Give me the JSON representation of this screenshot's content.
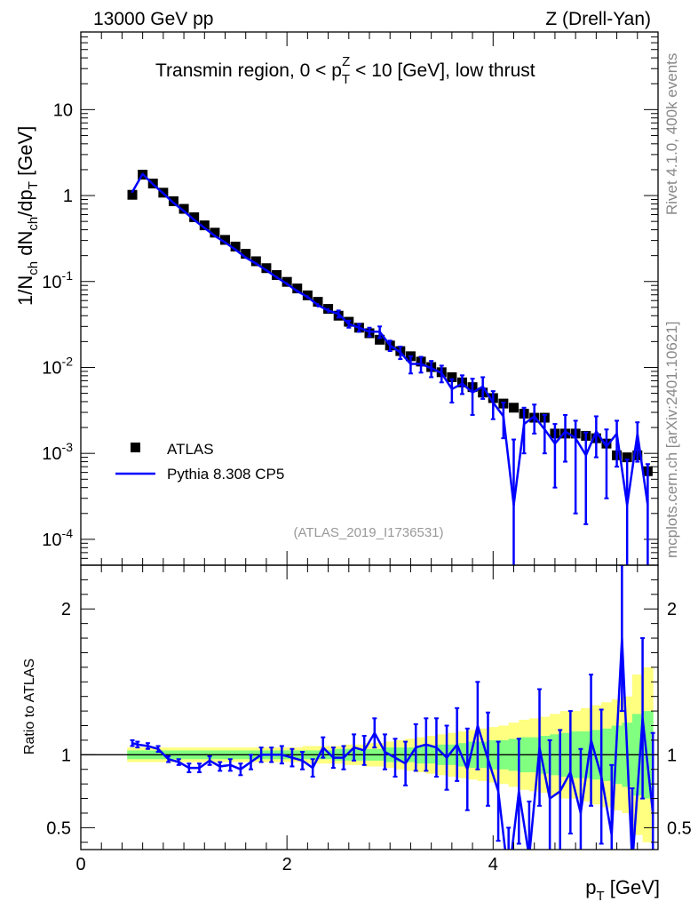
{
  "header": {
    "energy": "13000 GeV pp",
    "process": "Z (Drell-Yan)",
    "rivet": "Rivet 4.1.0,  400k events",
    "mcplots": "mcplots.cern.ch [arXiv:2401.10621]",
    "analysis_id": "(ATLAS_2019_I1736531)"
  },
  "chart_data": [
    {
      "panel": "main",
      "type": "line",
      "title": "Transmin region, 0 < p_T^Z < 10 [GeV], low thrust",
      "ylabel": "1/N_ch dN_ch/dp_T [GeV]",
      "yscale": "log",
      "xlim": [
        0,
        5.6
      ],
      "ylim": [
        5e-05,
        80
      ],
      "y_ticks": [
        "10^-4",
        "10^-3",
        "10^-2",
        "10^-1",
        "1",
        "10"
      ],
      "legend": {
        "placement": "bottom-left",
        "entries": [
          "ATLAS",
          "Pythia 8.308 CP5"
        ]
      },
      "series": [
        {
          "name": "ATLAS",
          "style": "markers",
          "color": "#000000",
          "x": [
            0.5,
            0.6,
            0.7,
            0.8,
            0.9,
            1.0,
            1.1,
            1.2,
            1.3,
            1.4,
            1.5,
            1.6,
            1.7,
            1.8,
            1.9,
            2.0,
            2.1,
            2.2,
            2.3,
            2.4,
            2.5,
            2.6,
            2.7,
            2.8,
            2.9,
            3.0,
            3.1,
            3.2,
            3.3,
            3.4,
            3.5,
            3.6,
            3.7,
            3.8,
            3.9,
            4.0,
            4.1,
            4.2,
            4.3,
            4.4,
            4.5,
            4.6,
            4.7,
            4.8,
            4.9,
            5.0,
            5.1,
            5.2,
            5.3,
            5.4,
            5.5
          ],
          "y": [
            1.02,
            1.75,
            1.38,
            1.08,
            0.86,
            0.7,
            0.56,
            0.45,
            0.37,
            0.305,
            0.255,
            0.21,
            0.172,
            0.143,
            0.119,
            0.099,
            0.083,
            0.069,
            0.058,
            0.048,
            0.04,
            0.034,
            0.029,
            0.025,
            0.021,
            0.018,
            0.0155,
            0.0135,
            0.0117,
            0.0101,
            0.0088,
            0.0077,
            0.0067,
            0.0059,
            0.0051,
            0.0044,
            0.0038,
            0.0034,
            0.0029,
            0.0026,
            0.0026,
            0.0017,
            0.0017,
            0.0017,
            0.0016,
            0.0015,
            0.0013,
            0.00095,
            0.0009,
            0.00095,
            0.00062
          ]
        },
        {
          "name": "Pythia 8.308 CP5",
          "style": "line",
          "color": "#0000ff",
          "x": [
            0.5,
            0.6,
            0.7,
            0.8,
            0.9,
            1.0,
            1.1,
            1.2,
            1.3,
            1.4,
            1.5,
            1.6,
            1.7,
            1.8,
            1.9,
            2.0,
            2.1,
            2.2,
            2.3,
            2.4,
            2.5,
            2.6,
            2.7,
            2.8,
            2.9,
            3.0,
            3.1,
            3.2,
            3.3,
            3.4,
            3.5,
            3.6,
            3.7,
            3.8,
            3.9,
            4.0,
            4.1,
            4.2,
            4.3,
            4.4,
            4.5,
            4.6,
            4.7,
            4.8,
            4.9,
            5.0,
            5.1,
            5.2,
            5.3,
            5.4,
            5.5
          ],
          "y": [
            1.1,
            1.78,
            1.35,
            1.06,
            0.82,
            0.66,
            0.52,
            0.42,
            0.34,
            0.285,
            0.235,
            0.19,
            0.162,
            0.135,
            0.112,
            0.094,
            0.077,
            0.066,
            0.053,
            0.046,
            0.042,
            0.032,
            0.029,
            0.026,
            0.026,
            0.018,
            0.015,
            0.011,
            0.011,
            0.0098,
            0.0086,
            0.0056,
            0.0065,
            0.0051,
            0.006,
            0.0039,
            0.0027,
            0.00025,
            0.0022,
            0.0027,
            0.0019,
            0.0013,
            0.0018,
            0.0015,
            0.00095,
            0.0018,
            0.0012,
            0.0017,
            0.00025,
            0.0017,
            0.00025
          ],
          "err_up": [
            0.02,
            0.03,
            0.02,
            0.02,
            0.02,
            0.015,
            0.012,
            0.01,
            0.008,
            0.007,
            0.006,
            0.005,
            0.005,
            0.004,
            0.004,
            0.004,
            0.003,
            0.003,
            0.003,
            0.003,
            0.004,
            0.003,
            0.003,
            0.003,
            0.004,
            0.0025,
            0.0025,
            0.0025,
            0.0023,
            0.0021,
            0.0019,
            0.0017,
            0.0016,
            0.0023,
            0.0017,
            0.0014,
            0.0012,
            0.0012,
            0.0012,
            0.001,
            0.0009,
            0.0009,
            0.001,
            0.0009,
            0.0008,
            0.0009,
            0.0007,
            0.0007,
            0.0006,
            0.0006,
            0.0005
          ],
          "err_down": [
            0.02,
            0.03,
            0.02,
            0.02,
            0.02,
            0.015,
            0.012,
            0.01,
            0.008,
            0.007,
            0.006,
            0.005,
            0.005,
            0.004,
            0.004,
            0.004,
            0.003,
            0.003,
            0.003,
            0.003,
            0.004,
            0.003,
            0.003,
            0.003,
            0.004,
            0.0025,
            0.0025,
            0.0025,
            0.0023,
            0.0021,
            0.0019,
            0.0017,
            0.0016,
            0.0023,
            0.0017,
            0.0014,
            0.0012,
            0.00024,
            0.0012,
            0.001,
            0.0009,
            0.0009,
            0.001,
            0.0013,
            0.0008,
            0.0009,
            0.0009,
            0.001,
            0.00024,
            0.0009,
            0.00024
          ]
        }
      ]
    },
    {
      "panel": "ratio",
      "type": "line",
      "ylabel": "Ratio to ATLAS",
      "xlabel": "p_T [GeV]",
      "xlim": [
        0,
        5.6
      ],
      "ylim": [
        0.35,
        2.3
      ],
      "x_ticks": [
        "0",
        "2",
        "4"
      ],
      "y_ticks": [
        "0.5",
        "1",
        "2"
      ],
      "reference": 1.0,
      "bands": {
        "x": [
          0.5,
          0.6,
          0.7,
          0.8,
          0.9,
          1.0,
          1.1,
          1.2,
          1.3,
          1.4,
          1.5,
          1.6,
          1.7,
          1.8,
          1.9,
          2.0,
          2.1,
          2.2,
          2.3,
          2.4,
          2.5,
          2.6,
          2.7,
          2.8,
          2.9,
          3.0,
          3.1,
          3.2,
          3.3,
          3.4,
          3.5,
          3.6,
          3.7,
          3.8,
          3.9,
          4.0,
          4.1,
          4.2,
          4.3,
          4.4,
          4.5,
          4.6,
          4.7,
          4.8,
          4.9,
          5.0,
          5.1,
          5.2,
          5.3,
          5.4,
          5.5
        ],
        "stat_halfwidth": [
          0.03,
          0.03,
          0.03,
          0.03,
          0.03,
          0.03,
          0.03,
          0.03,
          0.03,
          0.03,
          0.03,
          0.03,
          0.03,
          0.03,
          0.03,
          0.03,
          0.03,
          0.03,
          0.03,
          0.03,
          0.04,
          0.04,
          0.04,
          0.04,
          0.04,
          0.05,
          0.05,
          0.05,
          0.06,
          0.06,
          0.07,
          0.07,
          0.08,
          0.09,
          0.09,
          0.1,
          0.1,
          0.11,
          0.12,
          0.12,
          0.13,
          0.14,
          0.15,
          0.16,
          0.16,
          0.17,
          0.18,
          0.2,
          0.22,
          0.28,
          0.3
        ],
        "total_halfwidth": [
          0.05,
          0.05,
          0.05,
          0.05,
          0.05,
          0.05,
          0.05,
          0.05,
          0.05,
          0.05,
          0.05,
          0.05,
          0.05,
          0.05,
          0.05,
          0.05,
          0.05,
          0.06,
          0.06,
          0.06,
          0.06,
          0.07,
          0.07,
          0.08,
          0.08,
          0.09,
          0.1,
          0.11,
          0.12,
          0.13,
          0.14,
          0.15,
          0.16,
          0.17,
          0.18,
          0.19,
          0.2,
          0.22,
          0.24,
          0.25,
          0.26,
          0.28,
          0.3,
          0.3,
          0.32,
          0.34,
          0.36,
          0.38,
          0.4,
          0.55,
          0.6
        ]
      },
      "series": [
        {
          "name": "Pythia 8.308 CP5 / ATLAS",
          "color": "#0000ff",
          "x": [
            0.5,
            0.55,
            0.65,
            0.75,
            0.85,
            0.95,
            1.05,
            1.15,
            1.25,
            1.35,
            1.45,
            1.55,
            1.65,
            1.75,
            1.85,
            1.95,
            2.05,
            2.15,
            2.25,
            2.35,
            2.45,
            2.55,
            2.65,
            2.75,
            2.85,
            2.95,
            3.05,
            3.15,
            3.25,
            3.35,
            3.45,
            3.55,
            3.65,
            3.75,
            3.85,
            3.95,
            4.05,
            4.15,
            4.25,
            4.35,
            4.45,
            4.55,
            4.65,
            4.75,
            4.85,
            4.95,
            5.05,
            5.15,
            5.25,
            5.35,
            5.45,
            5.55
          ],
          "y": [
            1.08,
            1.07,
            1.06,
            1.04,
            0.97,
            0.95,
            0.91,
            0.91,
            0.96,
            0.92,
            0.93,
            0.9,
            0.95,
            1.0,
            1.0,
            1.0,
            0.98,
            0.96,
            0.91,
            1.05,
            0.98,
            0.98,
            1.05,
            1.03,
            1.15,
            1.02,
            0.98,
            0.94,
            1.05,
            1.07,
            1.05,
            0.98,
            1.07,
            0.9,
            1.2,
            0.97,
            0.75,
            0.15,
            0.75,
            0.3,
            1.05,
            0.7,
            0.75,
            0.88,
            0.6,
            1.1,
            0.85,
            0.45,
            1.8,
            0.25,
            1.25,
            0.6
          ],
          "err_up": [
            0.02,
            0.02,
            0.02,
            0.02,
            0.02,
            0.02,
            0.03,
            0.03,
            0.03,
            0.03,
            0.04,
            0.04,
            0.05,
            0.05,
            0.05,
            0.06,
            0.06,
            0.06,
            0.06,
            0.07,
            0.07,
            0.08,
            0.09,
            0.1,
            0.1,
            0.12,
            0.13,
            0.15,
            0.16,
            0.18,
            0.2,
            0.22,
            0.25,
            0.28,
            0.3,
            0.32,
            0.34,
            0.35,
            0.36,
            0.38,
            0.4,
            0.4,
            0.42,
            0.42,
            0.44,
            0.45,
            0.46,
            0.48,
            0.5,
            0.52,
            0.55,
            0.55
          ],
          "err_down": [
            0.02,
            0.02,
            0.02,
            0.02,
            0.02,
            0.02,
            0.03,
            0.03,
            0.03,
            0.03,
            0.04,
            0.04,
            0.05,
            0.05,
            0.05,
            0.06,
            0.06,
            0.06,
            0.06,
            0.07,
            0.07,
            0.08,
            0.09,
            0.1,
            0.1,
            0.12,
            0.13,
            0.15,
            0.16,
            0.18,
            0.2,
            0.22,
            0.25,
            0.28,
            0.3,
            0.32,
            0.34,
            0.35,
            0.36,
            0.38,
            0.4,
            0.4,
            0.42,
            0.42,
            0.44,
            0.45,
            0.46,
            0.48,
            0.5,
            0.52,
            0.55,
            0.55
          ]
        }
      ]
    }
  ]
}
